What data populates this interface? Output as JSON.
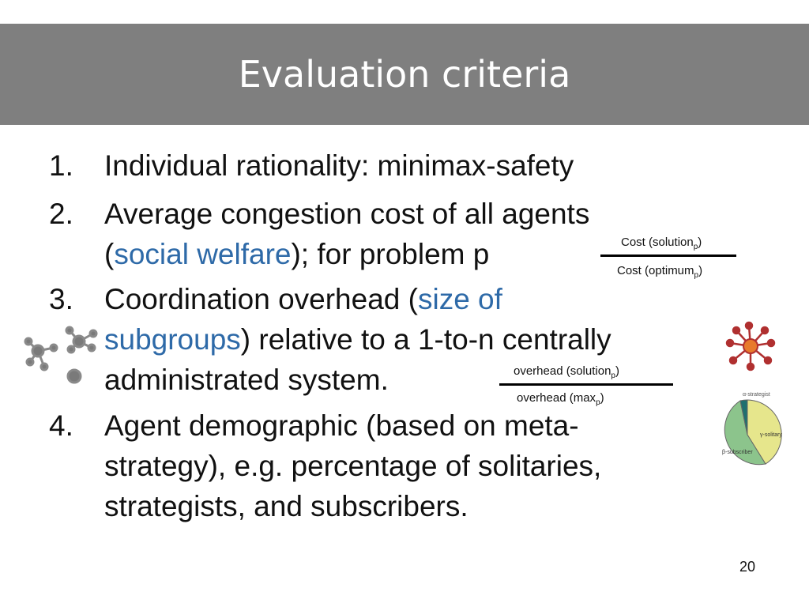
{
  "slide": {
    "title": "Evaluation criteria",
    "page_number": "20"
  },
  "items": [
    {
      "number": "1.",
      "lines": [
        "Individual rationality: minimax-safety"
      ]
    },
    {
      "number": "2.",
      "line1": "Average congestion cost of all agents",
      "line2_pre": "(",
      "line2_hl": "social welfare",
      "line2_post": "); for problem p"
    },
    {
      "number": "3.",
      "line1_pre": "Coordination overhead (",
      "line1_hl": "size of",
      "line2_hl": "subgroups",
      "line2_post": ") relative to a 1-to-n centrally",
      "line3": "administrated system."
    },
    {
      "number": "4.",
      "lines": [
        "Agent demographic (based on meta-",
        "strategy), e.g. percentage of solitaries,",
        "strategists, and subscribers."
      ]
    }
  ],
  "fraction_cost": {
    "num_pre": "Cost (solution",
    "num_sub": "p",
    "num_post": ")",
    "den_pre": "Cost (optimum",
    "den_sub": "p",
    "den_post": ")"
  },
  "fraction_overhead": {
    "num_pre": "overhead (solution",
    "num_sub": "p",
    "num_post": ")",
    "den_pre": "overhead (max",
    "den_sub": "p",
    "den_post": ")"
  },
  "pie": {
    "labels": {
      "strategist": "α-strategist",
      "solitary": "γ-solitary",
      "subscriber": "β-subscriber"
    },
    "colors": {
      "strategist": "#1f6f6f",
      "solitary": "#e6e68c",
      "subscriber": "#8cc48c"
    }
  },
  "icons": {
    "left_network": "network-graph-icon",
    "right_network": "hub-network-icon"
  }
}
